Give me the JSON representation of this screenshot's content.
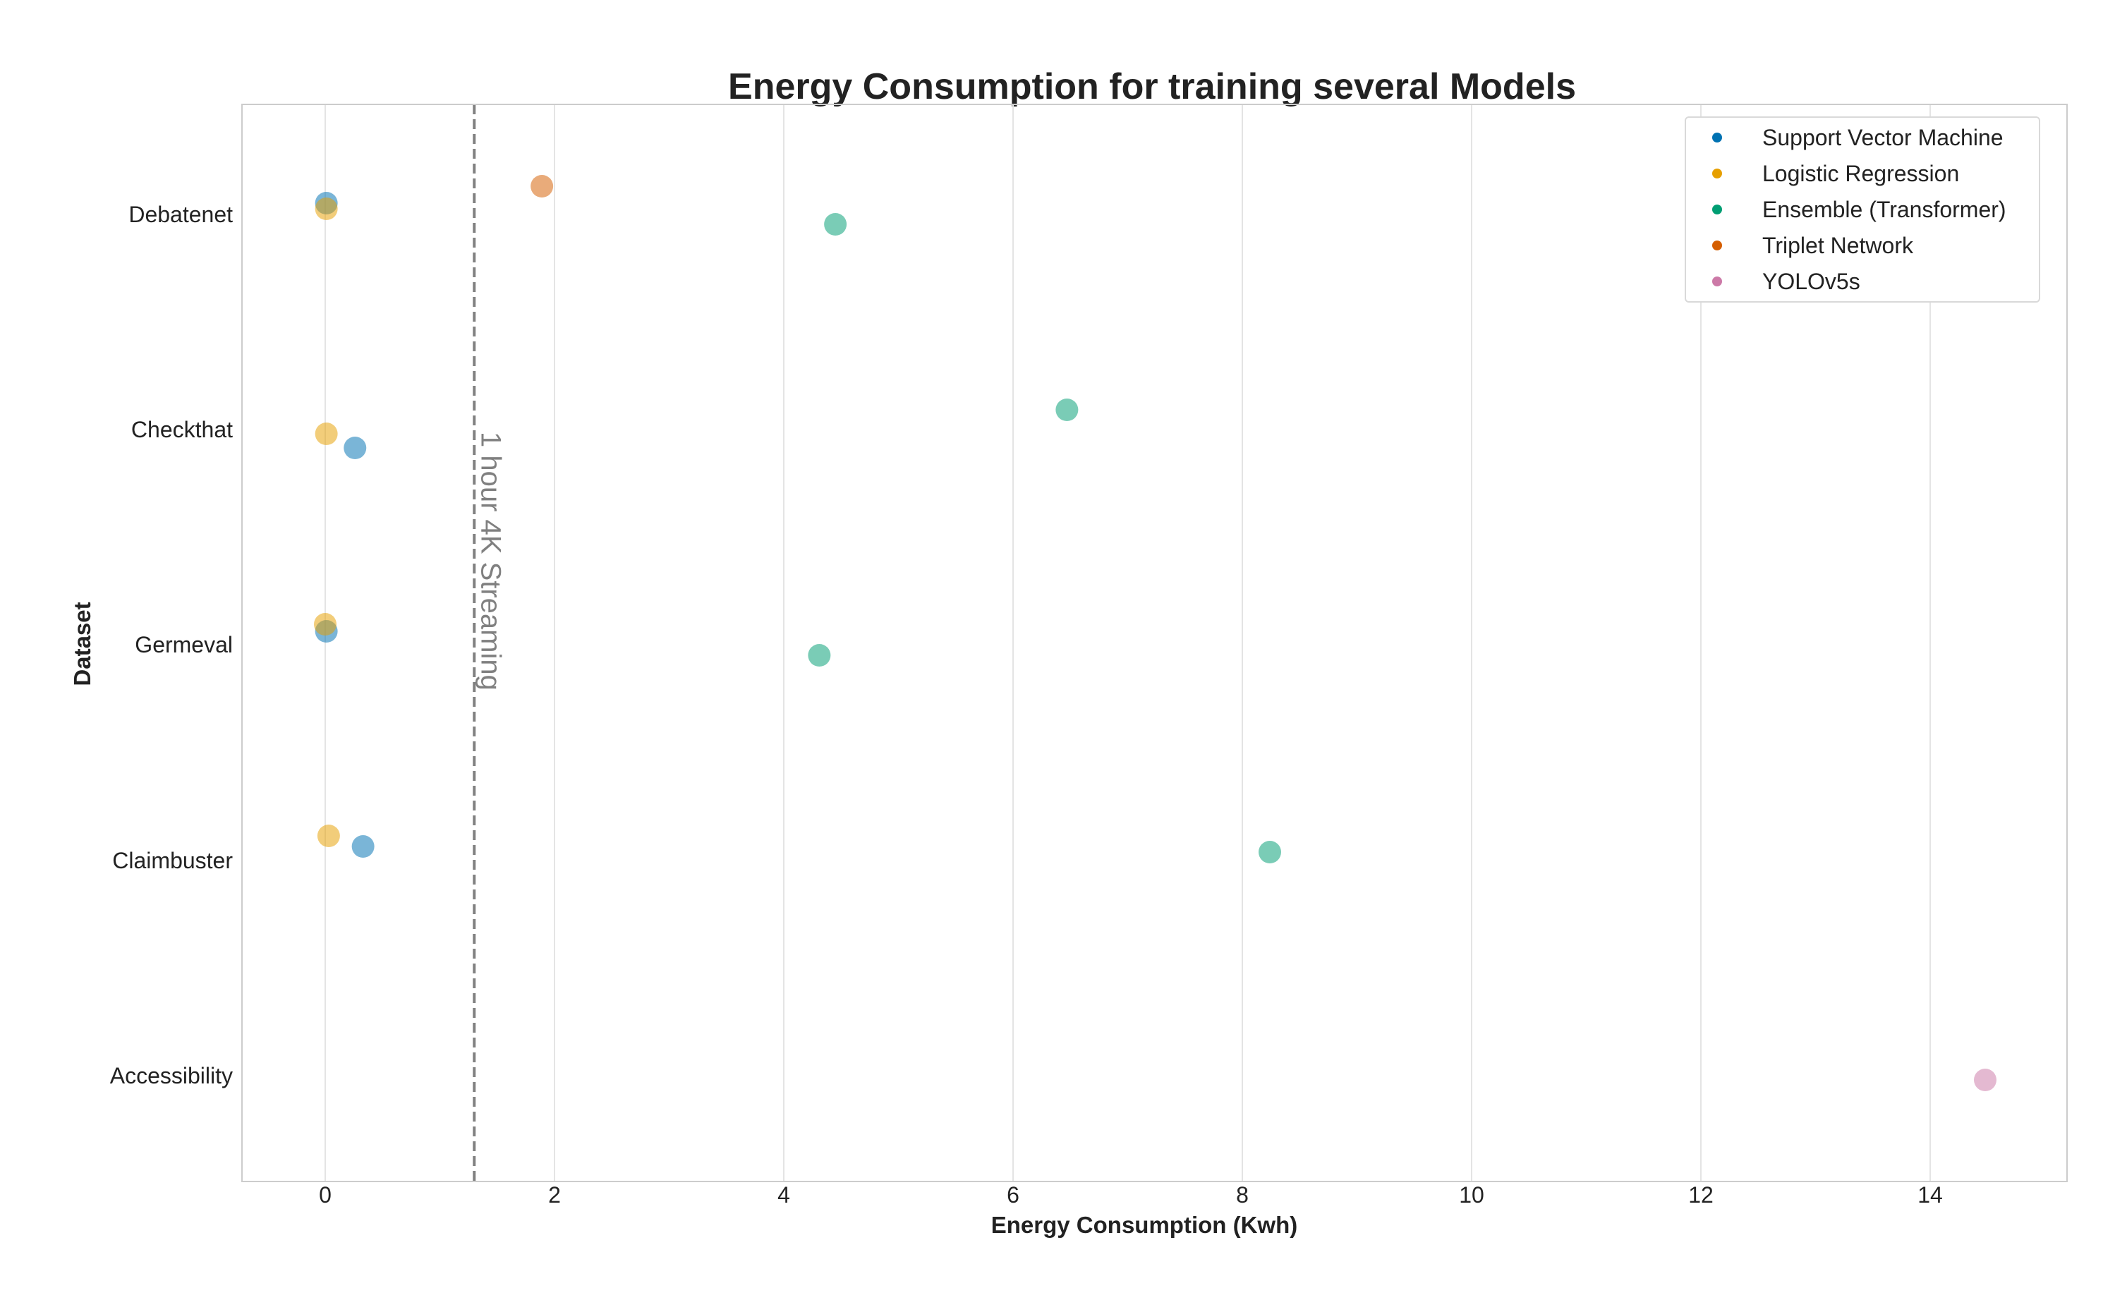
{
  "chart_data": {
    "type": "scatter",
    "title": "Energy Consumption for training several Models",
    "xlabel": "Energy Consumption (Kwh)",
    "ylabel": "Dataset",
    "xlim": [
      -0.7,
      15.2
    ],
    "xticks": [
      0,
      2,
      4,
      6,
      8,
      10,
      12,
      14
    ],
    "categories": [
      "Debatenet",
      "Checkthat",
      "Germeval",
      "Claimbuster",
      "Accessibility"
    ],
    "grid": "vertical",
    "legend_position": "top-right",
    "reference_line": {
      "x": 1.3,
      "label": "1 hour 4K Streaming",
      "style": "dashed",
      "color": "#808080"
    },
    "series": [
      {
        "name": "Support Vector Machine",
        "color": "#0072b2",
        "points": [
          {
            "category": "Debatenet",
            "x": 0.01
          },
          {
            "category": "Checkthat",
            "x": 0.26
          },
          {
            "category": "Germeval",
            "x": 0.01
          },
          {
            "category": "Claimbuster",
            "x": 0.33
          }
        ]
      },
      {
        "name": "Logistic Regression",
        "color": "#e69f00",
        "points": [
          {
            "category": "Debatenet",
            "x": 0.01
          },
          {
            "category": "Checkthat",
            "x": 0.01
          },
          {
            "category": "Germeval",
            "x": 0.0
          },
          {
            "category": "Claimbuster",
            "x": 0.03
          }
        ]
      },
      {
        "name": "Ensemble (Transformer)",
        "color": "#009e73",
        "points": [
          {
            "category": "Debatenet",
            "x": 4.45
          },
          {
            "category": "Checkthat",
            "x": 6.47
          },
          {
            "category": "Germeval",
            "x": 4.31
          },
          {
            "category": "Claimbuster",
            "x": 8.24
          }
        ]
      },
      {
        "name": "Triplet Network",
        "color": "#d55e00",
        "points": [
          {
            "category": "Debatenet",
            "x": 1.89
          }
        ]
      },
      {
        "name": "YOLOv5s",
        "color": "#cc79a7",
        "points": [
          {
            "category": "Accessibility",
            "x": 14.48
          }
        ]
      }
    ]
  }
}
